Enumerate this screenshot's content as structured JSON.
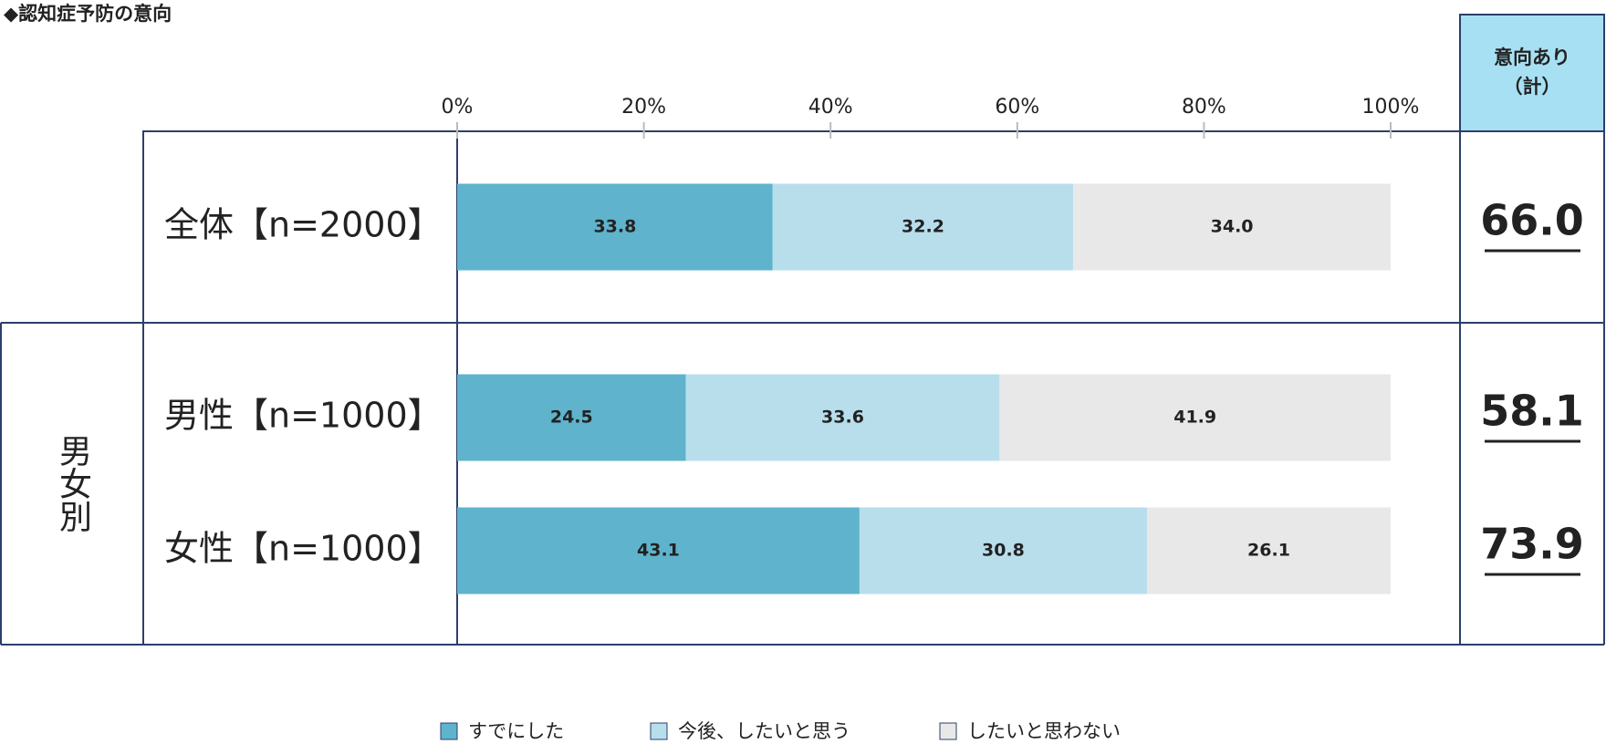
{
  "chart_data": {
    "type": "stacked_bar_horizontal",
    "title": "◆認知症予防の意向",
    "categories": [
      "全体【n=2000】",
      "男性【n=1000】",
      "女性【n=1000】"
    ],
    "group_label": "男女別",
    "series": [
      {
        "name": "すでにした",
        "color": "#5fb3cc",
        "values": [
          33.8,
          24.5,
          43.1
        ],
        "value_labels": [
          "33.8",
          "24.5",
          "43.1"
        ]
      },
      {
        "name": "今後、したいと思う",
        "color": "#b8deec",
        "values": [
          32.2,
          33.6,
          30.8
        ],
        "value_labels": [
          "32.2",
          "33.6",
          "30.8"
        ]
      },
      {
        "name": "したいと思わない",
        "color": "#e8e8e8",
        "values": [
          34,
          41.9,
          26.1
        ],
        "value_labels": [
          "34.0",
          "41.9",
          "26.1"
        ]
      }
    ],
    "xlim": [
      0,
      100
    ],
    "xticks": [
      {
        "value": 0,
        "label": "0%"
      },
      {
        "value": 20,
        "label": "20%"
      },
      {
        "value": 40,
        "label": "40%"
      },
      {
        "value": 60,
        "label": "60%"
      },
      {
        "value": 80,
        "label": "80%"
      },
      {
        "value": 100,
        "label": "100%"
      }
    ],
    "intent": {
      "title": [
        "意向あり",
        "（計）"
      ],
      "color": "#a8e0f3",
      "values": [
        66,
        58.1,
        73.9
      ],
      "value_labels": [
        "66.0",
        "58.1",
        "73.9"
      ]
    }
  }
}
